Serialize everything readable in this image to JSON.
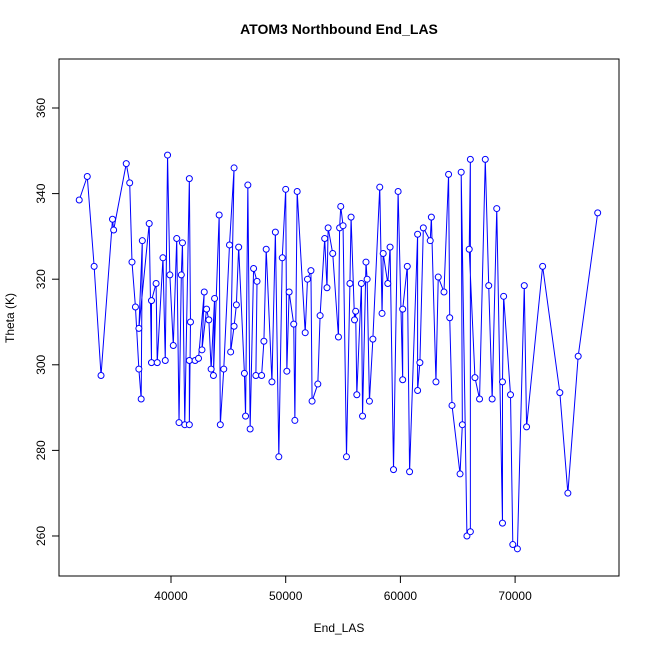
{
  "chart_data": {
    "type": "line",
    "title": "ATOM3 Northbound End_LAS",
    "x_label": "End_LAS",
    "y_label": "Theta (K)",
    "color": "#0000ff",
    "markers": true,
    "xlim": [
      30236,
      79058
    ],
    "ylim": [
      250.65,
      371.45
    ],
    "xticks": [
      40000,
      50000,
      60000,
      70000
    ],
    "yticks": [
      260,
      280,
      300,
      320,
      340,
      360
    ],
    "x": [
      32000,
      32700,
      33300,
      33900,
      34900,
      35000,
      36100,
      36400,
      36600,
      36900,
      37200,
      37400,
      37500,
      37200,
      38100,
      38300,
      38300,
      38700,
      38800,
      39300,
      39500,
      39700,
      39900,
      40200,
      40500,
      40700,
      40900,
      41000,
      41200,
      41600,
      41700,
      41600,
      41600,
      42100,
      42400,
      42900,
      42700,
      43100,
      43300,
      43500,
      43800,
      43700,
      44200,
      44300,
      44600,
      45100,
      45500,
      45200,
      45500,
      45700,
      45900,
      46400,
      46500,
      46700,
      46900,
      47200,
      47500,
      47400,
      47900,
      48100,
      48300,
      48800,
      49100,
      49400,
      49700,
      50000,
      50100,
      50300,
      50700,
      50800,
      51000,
      51700,
      51900,
      52200,
      52300,
      52800,
      53000,
      53400,
      53600,
      53700,
      54100,
      54600,
      54700,
      54800,
      55000,
      55300,
      55600,
      55700,
      56000,
      56100,
      56200,
      56600,
      56700,
      57000,
      57100,
      57300,
      57600,
      58200,
      58400,
      58500,
      58900,
      59100,
      59400,
      59800,
      60200,
      60200,
      60600,
      60800,
      61500,
      61500,
      61700,
      62000,
      62600,
      62700,
      63100,
      63300,
      63800,
      64200,
      64300,
      64500,
      65200,
      65400,
      65300,
      65800,
      66100,
      66100,
      66000,
      66500,
      66900,
      67400,
      67700,
      68000,
      68400,
      68900,
      68900,
      69000,
      69600,
      69800,
      70200,
      70800,
      71000,
      72400,
      73900,
      74600,
      75500,
      77200
    ],
    "y": [
      338.5,
      344,
      323,
      297.5,
      334,
      331.5,
      347,
      342.5,
      324,
      313.5,
      299,
      292,
      329,
      308.5,
      333,
      300.5,
      315,
      319,
      300.5,
      325,
      301,
      349,
      321,
      304.5,
      329.5,
      286.5,
      321,
      328.5,
      286,
      343.5,
      310,
      286,
      301,
      301,
      301.5,
      317,
      303.5,
      313,
      310.5,
      299,
      315.5,
      297.5,
      335,
      286,
      299,
      328,
      346,
      303,
      309,
      314,
      327.5,
      298,
      288,
      342,
      285,
      322.5,
      319.5,
      297.5,
      297.5,
      305.5,
      327,
      296,
      331,
      278.5,
      325,
      341,
      298.5,
      317,
      309.5,
      287,
      340.5,
      307.5,
      320,
      322,
      291.5,
      295.5,
      311.5,
      329.5,
      318,
      332,
      326,
      306.5,
      332,
      337,
      332.5,
      278.5,
      319,
      334.5,
      310.5,
      312.5,
      293,
      319,
      288,
      324,
      320,
      291.5,
      306,
      341.5,
      312,
      326,
      319,
      327.5,
      275.5,
      340.5,
      296.5,
      313,
      323,
      275,
      330.5,
      294,
      300.5,
      332,
      329,
      334.5,
      296,
      320.5,
      317,
      344.5,
      311,
      290.5,
      274.5,
      286,
      345,
      260,
      261,
      348,
      327,
      297,
      292,
      348,
      318.5,
      292,
      336.5,
      263,
      296,
      316,
      293,
      258,
      257,
      318.5,
      285.5,
      323,
      293.5,
      270,
      302,
      335.5
    ]
  }
}
